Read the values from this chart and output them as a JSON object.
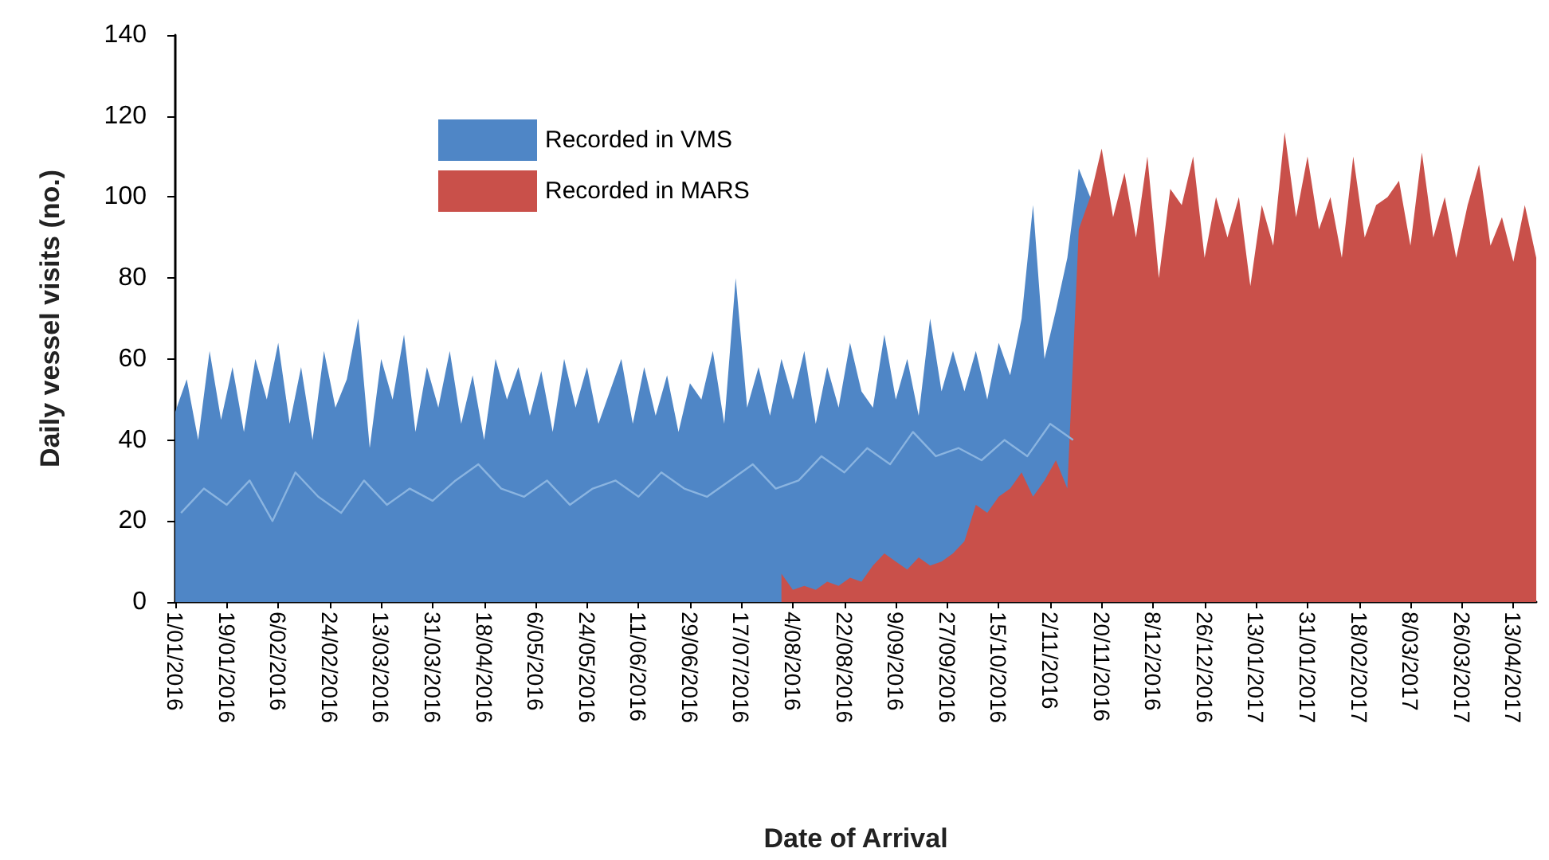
{
  "chart_data": {
    "type": "area",
    "xlabel": "Date of Arrival",
    "ylabel": "Daily vessel visits (no.)",
    "xlim": [
      "2016-01-01",
      "2017-04-21"
    ],
    "xticks": [
      {
        "value": "2016-01-01",
        "label": "1/01/2016"
      },
      {
        "value": "2016-01-19",
        "label": "19/01/2016"
      },
      {
        "value": "2016-02-06",
        "label": "6/02/2016"
      },
      {
        "value": "2016-02-24",
        "label": "24/02/2016"
      },
      {
        "value": "2016-03-13",
        "label": "13/03/2016"
      },
      {
        "value": "2016-03-31",
        "label": "31/03/2016"
      },
      {
        "value": "2016-04-18",
        "label": "18/04/2016"
      },
      {
        "value": "2016-05-06",
        "label": "6/05/2016"
      },
      {
        "value": "2016-05-24",
        "label": "24/05/2016"
      },
      {
        "value": "2016-06-11",
        "label": "11/06/2016"
      },
      {
        "value": "2016-06-29",
        "label": "29/06/2016"
      },
      {
        "value": "2016-07-17",
        "label": "17/07/2016"
      },
      {
        "value": "2016-08-04",
        "label": "4/08/2016"
      },
      {
        "value": "2016-08-22",
        "label": "22/08/2016"
      },
      {
        "value": "2016-09-09",
        "label": "9/09/2016"
      },
      {
        "value": "2016-09-27",
        "label": "27/09/2016"
      },
      {
        "value": "2016-10-15",
        "label": "15/10/2016"
      },
      {
        "value": "2016-11-02",
        "label": "2/11/2016"
      },
      {
        "value": "2016-11-20",
        "label": "20/11/2016"
      },
      {
        "value": "2016-12-08",
        "label": "8/12/2016"
      },
      {
        "value": "2016-12-26",
        "label": "26/12/2016"
      },
      {
        "value": "2017-01-13",
        "label": "13/01/2017"
      },
      {
        "value": "2017-01-31",
        "label": "31/01/2017"
      },
      {
        "value": "2017-02-18",
        "label": "18/02/2017"
      },
      {
        "value": "2017-03-08",
        "label": "8/03/2017"
      },
      {
        "value": "2017-03-26",
        "label": "26/03/2017"
      },
      {
        "value": "2017-04-13",
        "label": "13/04/2017"
      }
    ],
    "ylim": [
      0,
      140
    ],
    "yticks": [
      0,
      20,
      40,
      60,
      80,
      100,
      120,
      140
    ],
    "grid": false,
    "legend": "top left",
    "series": [
      {
        "name": "Recorded in VMS",
        "color": "#4f86c6",
        "x": [
          "2016-01-01",
          "2016-01-05",
          "2016-01-09",
          "2016-01-13",
          "2016-01-17",
          "2016-01-21",
          "2016-01-25",
          "2016-01-29",
          "2016-02-02",
          "2016-02-06",
          "2016-02-10",
          "2016-02-14",
          "2016-02-18",
          "2016-02-22",
          "2016-02-26",
          "2016-03-01",
          "2016-03-05",
          "2016-03-09",
          "2016-03-13",
          "2016-03-17",
          "2016-03-21",
          "2016-03-25",
          "2016-03-29",
          "2016-04-02",
          "2016-04-06",
          "2016-04-10",
          "2016-04-14",
          "2016-04-18",
          "2016-04-22",
          "2016-04-26",
          "2016-04-30",
          "2016-05-04",
          "2016-05-08",
          "2016-05-12",
          "2016-05-16",
          "2016-05-20",
          "2016-05-24",
          "2016-05-28",
          "2016-06-01",
          "2016-06-05",
          "2016-06-09",
          "2016-06-13",
          "2016-06-17",
          "2016-06-21",
          "2016-06-25",
          "2016-06-29",
          "2016-07-03",
          "2016-07-07",
          "2016-07-11",
          "2016-07-15",
          "2016-07-19",
          "2016-07-23",
          "2016-07-27",
          "2016-07-31",
          "2016-08-04",
          "2016-08-08",
          "2016-08-12",
          "2016-08-16",
          "2016-08-20",
          "2016-08-24",
          "2016-08-28",
          "2016-09-01",
          "2016-09-05",
          "2016-09-09",
          "2016-09-13",
          "2016-09-17",
          "2016-09-21",
          "2016-09-25",
          "2016-09-29",
          "2016-10-03",
          "2016-10-07",
          "2016-10-11",
          "2016-10-15",
          "2016-10-19",
          "2016-10-23",
          "2016-10-27",
          "2016-10-31",
          "2016-11-04",
          "2016-11-08",
          "2016-11-12",
          "2016-11-16"
        ],
        "values": [
          47,
          55,
          40,
          62,
          45,
          58,
          42,
          60,
          50,
          64,
          44,
          58,
          40,
          62,
          48,
          55,
          70,
          38,
          60,
          50,
          66,
          42,
          58,
          48,
          62,
          44,
          56,
          40,
          60,
          50,
          58,
          46,
          57,
          42,
          60,
          48,
          58,
          44,
          52,
          60,
          44,
          58,
          46,
          56,
          42,
          54,
          50,
          62,
          44,
          80,
          48,
          58,
          46,
          60,
          50,
          62,
          44,
          58,
          48,
          64,
          52,
          48,
          66,
          50,
          60,
          46,
          70,
          52,
          62,
          52,
          62,
          50,
          64,
          56,
          70,
          98,
          60,
          72,
          85,
          107,
          100
        ]
      },
      {
        "color": "#8ab4e0",
        "type": "line",
        "x": [
          "2016-01-03",
          "2016-01-11",
          "2016-01-19",
          "2016-01-27",
          "2016-02-04",
          "2016-02-12",
          "2016-02-20",
          "2016-02-28",
          "2016-03-07",
          "2016-03-15",
          "2016-03-23",
          "2016-03-31",
          "2016-04-08",
          "2016-04-16",
          "2016-04-24",
          "2016-05-02",
          "2016-05-10",
          "2016-05-18",
          "2016-05-26",
          "2016-06-03",
          "2016-06-11",
          "2016-06-19",
          "2016-06-27",
          "2016-07-05",
          "2016-07-13",
          "2016-07-21",
          "2016-07-29",
          "2016-08-06",
          "2016-08-14",
          "2016-08-22",
          "2016-08-30",
          "2016-09-07",
          "2016-09-15",
          "2016-09-23",
          "2016-10-01",
          "2016-10-09",
          "2016-10-17",
          "2016-10-25",
          "2016-11-02",
          "2016-11-10"
        ],
        "values": [
          22,
          28,
          24,
          30,
          20,
          32,
          26,
          22,
          30,
          24,
          28,
          25,
          30,
          34,
          28,
          26,
          30,
          24,
          28,
          30,
          26,
          32,
          28,
          26,
          30,
          34,
          28,
          30,
          36,
          32,
          38,
          34,
          42,
          36,
          38,
          35,
          40,
          36,
          44,
          40
        ]
      },
      {
        "name": "Recorded in MARS",
        "color": "#c9504a",
        "x": [
          "2016-07-31",
          "2016-08-04",
          "2016-08-08",
          "2016-08-12",
          "2016-08-16",
          "2016-08-20",
          "2016-08-24",
          "2016-08-28",
          "2016-09-01",
          "2016-09-05",
          "2016-09-09",
          "2016-09-13",
          "2016-09-17",
          "2016-09-21",
          "2016-09-25",
          "2016-09-29",
          "2016-10-03",
          "2016-10-07",
          "2016-10-11",
          "2016-10-15",
          "2016-10-19",
          "2016-10-23",
          "2016-10-27",
          "2016-10-31",
          "2016-11-04",
          "2016-11-08",
          "2016-11-12",
          "2016-11-16",
          "2016-11-20",
          "2016-11-24",
          "2016-11-28",
          "2016-12-02",
          "2016-12-06",
          "2016-12-10",
          "2016-12-14",
          "2016-12-18",
          "2016-12-22",
          "2016-12-26",
          "2016-12-30",
          "2017-01-03",
          "2017-01-07",
          "2017-01-11",
          "2017-01-15",
          "2017-01-19",
          "2017-01-23",
          "2017-01-27",
          "2017-01-31",
          "2017-02-04",
          "2017-02-08",
          "2017-02-12",
          "2017-02-16",
          "2017-02-20",
          "2017-02-24",
          "2017-02-28",
          "2017-03-04",
          "2017-03-08",
          "2017-03-12",
          "2017-03-16",
          "2017-03-20",
          "2017-03-24",
          "2017-03-28",
          "2017-04-01",
          "2017-04-05",
          "2017-04-09",
          "2017-04-13",
          "2017-04-17",
          "2017-04-21"
        ],
        "values": [
          7,
          3,
          4,
          3,
          5,
          4,
          6,
          5,
          9,
          12,
          10,
          8,
          11,
          9,
          10,
          12,
          15,
          24,
          22,
          26,
          28,
          32,
          26,
          30,
          35,
          28,
          92,
          100,
          112,
          95,
          106,
          90,
          110,
          80,
          102,
          98,
          110,
          85,
          100,
          90,
          100,
          78,
          98,
          88,
          116,
          95,
          110,
          92,
          100,
          85,
          110,
          90,
          98,
          100,
          104,
          88,
          111,
          90,
          100,
          85,
          98,
          108,
          88,
          95,
          84,
          98,
          85
        ]
      }
    ]
  }
}
